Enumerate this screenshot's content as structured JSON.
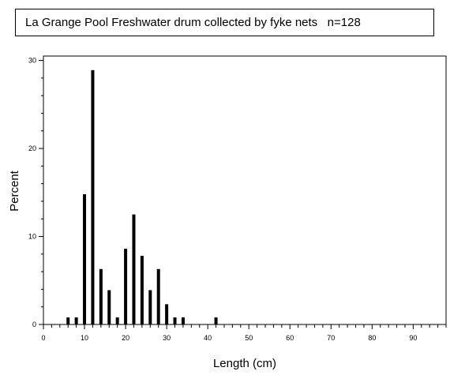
{
  "chart_data": {
    "type": "bar",
    "title": "La Grange Pool Freshwater drum collected by fyke nets   n=128",
    "xlabel": "Length (cm)",
    "ylabel": "Percent",
    "xlim": [
      0,
      98
    ],
    "ylim": [
      0,
      30.5
    ],
    "x_ticks": [
      "0",
      "10",
      "20",
      "30",
      "40",
      "50",
      "60",
      "70",
      "80",
      "90"
    ],
    "y_ticks": [
      "0",
      "10",
      "20",
      "30"
    ],
    "grid": false,
    "legend": "none",
    "bar_color": "#000000",
    "points": [
      {
        "x": 6,
        "y": 0.8
      },
      {
        "x": 8,
        "y": 0.8
      },
      {
        "x": 10,
        "y": 14.8
      },
      {
        "x": 12,
        "y": 28.9
      },
      {
        "x": 14,
        "y": 6.3
      },
      {
        "x": 16,
        "y": 3.9
      },
      {
        "x": 18,
        "y": 0.8
      },
      {
        "x": 20,
        "y": 8.6
      },
      {
        "x": 22,
        "y": 12.5
      },
      {
        "x": 24,
        "y": 7.8
      },
      {
        "x": 26,
        "y": 3.9
      },
      {
        "x": 28,
        "y": 6.3
      },
      {
        "x": 30,
        "y": 2.3
      },
      {
        "x": 32,
        "y": 0.8
      },
      {
        "x": 34,
        "y": 0.8
      },
      {
        "x": 42,
        "y": 0.8
      }
    ]
  }
}
